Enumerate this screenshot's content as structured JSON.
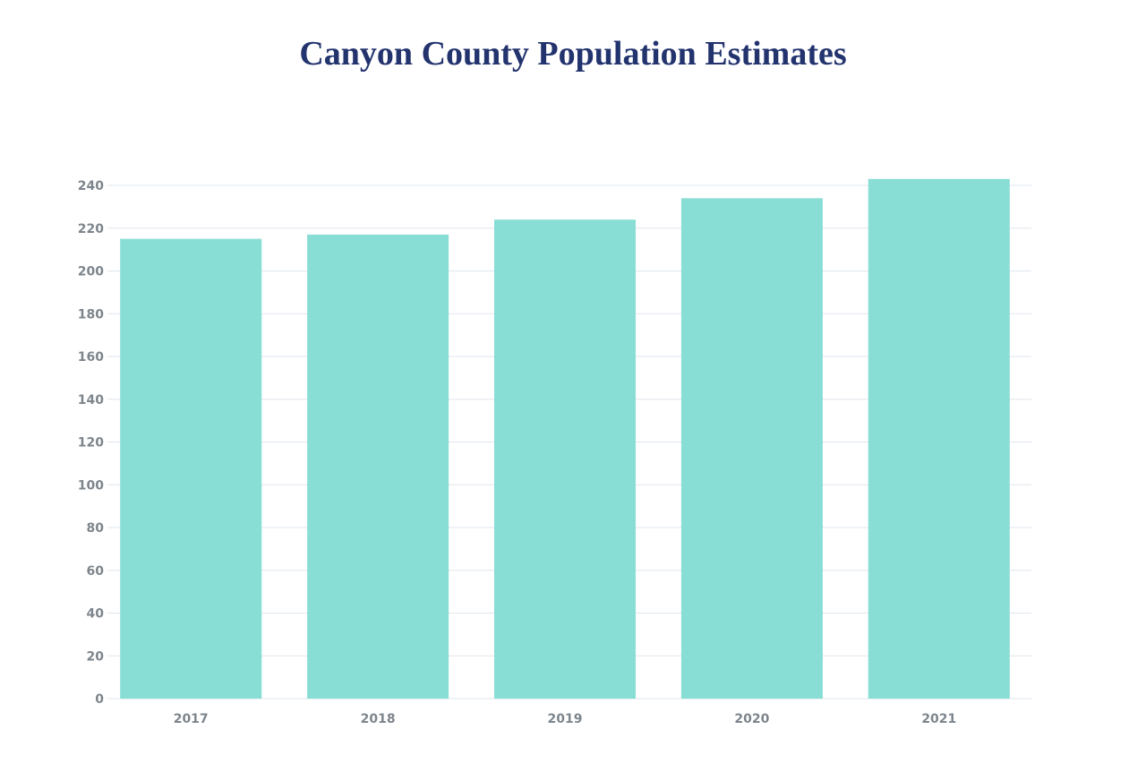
{
  "chart_data": {
    "type": "bar",
    "title": "Canyon County Population Estimates",
    "categories": [
      "2017",
      "2018",
      "2019",
      "2020",
      "2021"
    ],
    "values": [
      215,
      217,
      224,
      234,
      243
    ],
    "xlabel": "",
    "ylabel": "",
    "ylim": [
      0,
      240
    ],
    "yticks": [
      "0",
      "20",
      "40",
      "60",
      "80",
      "100",
      "120",
      "140",
      "160",
      "180",
      "200",
      "220",
      "240"
    ],
    "grid": true,
    "bar_color": "#88ddd5",
    "grid_color": "#dfe6ee",
    "title_color": "#22336e"
  }
}
